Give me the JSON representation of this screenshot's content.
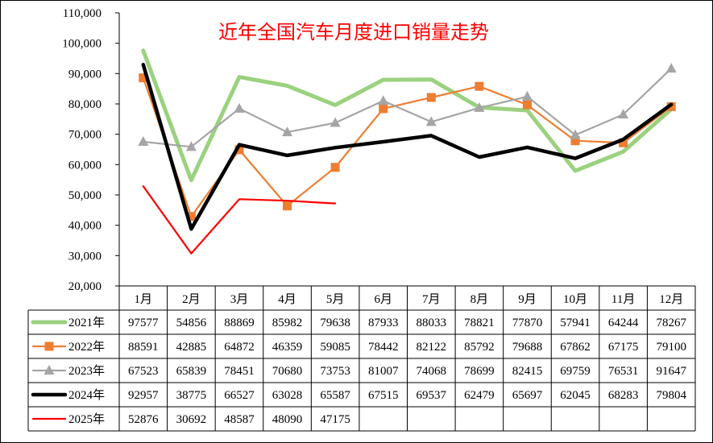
{
  "chart_data": {
    "type": "line",
    "title": "近年全国汽车月度进口销量走势",
    "xlabel": "",
    "ylabel": "",
    "ylim": [
      20000,
      110000
    ],
    "yticks": [
      20000,
      30000,
      40000,
      50000,
      60000,
      70000,
      80000,
      90000,
      100000,
      110000
    ],
    "ytick_labels": [
      "20,000",
      "30,000",
      "40,000",
      "50,000",
      "60,000",
      "70,000",
      "80,000",
      "90,000",
      "100,000",
      "110,000"
    ],
    "grid": false,
    "legend": "data-table",
    "categories": [
      "1月",
      "2月",
      "3月",
      "4月",
      "5月",
      "6月",
      "7月",
      "8月",
      "9月",
      "10月",
      "11月",
      "12月"
    ],
    "series": [
      {
        "name": "2021年",
        "color": "#9bd17f",
        "marker": "none",
        "values": [
          97577,
          54856,
          88869,
          85982,
          79638,
          87933,
          88033,
          78821,
          77870,
          57941,
          64244,
          78267
        ]
      },
      {
        "name": "2022年",
        "color": "#ed7d31",
        "marker": "square",
        "values": [
          88591,
          42885,
          64872,
          46359,
          59085,
          78442,
          82122,
          85792,
          79688,
          67862,
          67175,
          79100
        ]
      },
      {
        "name": "2023年",
        "color": "#a5a5a5",
        "marker": "triangle",
        "values": [
          67523,
          65839,
          78451,
          70680,
          73753,
          81007,
          74068,
          78699,
          82415,
          69759,
          76531,
          91647
        ]
      },
      {
        "name": "2024年",
        "color": "#000000",
        "marker": "none",
        "values": [
          92957,
          38775,
          66527,
          63028,
          65587,
          67515,
          69537,
          62479,
          65697,
          62045,
          68283,
          79804
        ]
      },
      {
        "name": "2025年",
        "color": "#ff0000",
        "marker": "none",
        "values": [
          52876,
          30692,
          48587,
          48090,
          47175,
          null,
          null,
          null,
          null,
          null,
          null,
          null
        ]
      }
    ]
  }
}
